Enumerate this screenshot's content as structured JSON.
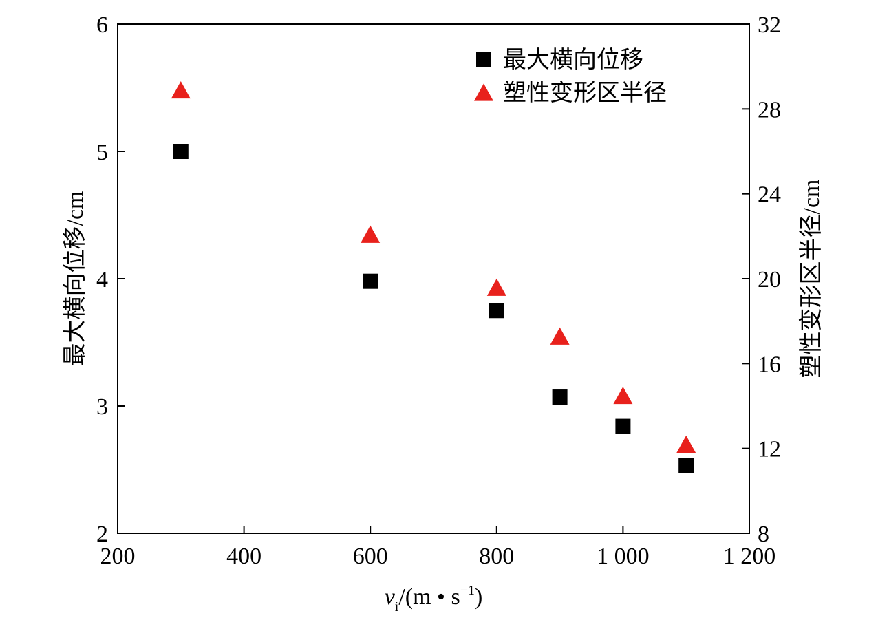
{
  "chart_data": {
    "type": "scatter",
    "xlabel_main": "v",
    "xlabel_sub": "i",
    "xlabel_unit_open": "/(m • s",
    "xlabel_sup": "−1",
    "xlabel_unit_close": ")",
    "ylabel_left": "最大横向位移/cm",
    "ylabel_right": "塑性变形区半径/cm",
    "xlim": [
      200,
      1200
    ],
    "ylim_left": [
      2,
      6
    ],
    "ylim_right": [
      8,
      32
    ],
    "x_ticks": [
      {
        "value": 200,
        "label": "200"
      },
      {
        "value": 400,
        "label": "400"
      },
      {
        "value": 600,
        "label": "600"
      },
      {
        "value": 800,
        "label": "800"
      },
      {
        "value": 1000,
        "label": "1 000"
      },
      {
        "value": 1200,
        "label": "1 200"
      }
    ],
    "y_left_ticks": [
      {
        "value": 2,
        "label": "2"
      },
      {
        "value": 3,
        "label": "3"
      },
      {
        "value": 4,
        "label": "4"
      },
      {
        "value": 5,
        "label": "5"
      },
      {
        "value": 6,
        "label": "6"
      }
    ],
    "y_right_ticks": [
      {
        "value": 8,
        "label": "8"
      },
      {
        "value": 12,
        "label": "12"
      },
      {
        "value": 16,
        "label": "16"
      },
      {
        "value": 20,
        "label": "20"
      },
      {
        "value": 24,
        "label": "24"
      },
      {
        "value": 28,
        "label": "28"
      },
      {
        "value": 32,
        "label": "32"
      }
    ],
    "legend_position": "top-right",
    "grid": false,
    "series": [
      {
        "name": "最大横向位移",
        "axis": "left",
        "marker": "square",
        "color": "#000000",
        "x": [
          300,
          600,
          800,
          900,
          1000,
          1100
        ],
        "y": [
          5.0,
          3.98,
          3.75,
          3.07,
          2.84,
          2.53
        ]
      },
      {
        "name": "塑性变形区半径",
        "axis": "right",
        "marker": "triangle",
        "color": "#e8211c",
        "x": [
          300,
          600,
          800,
          900,
          1000,
          1100
        ],
        "y": [
          28.9,
          22.1,
          19.6,
          17.3,
          14.5,
          12.2
        ]
      }
    ]
  }
}
